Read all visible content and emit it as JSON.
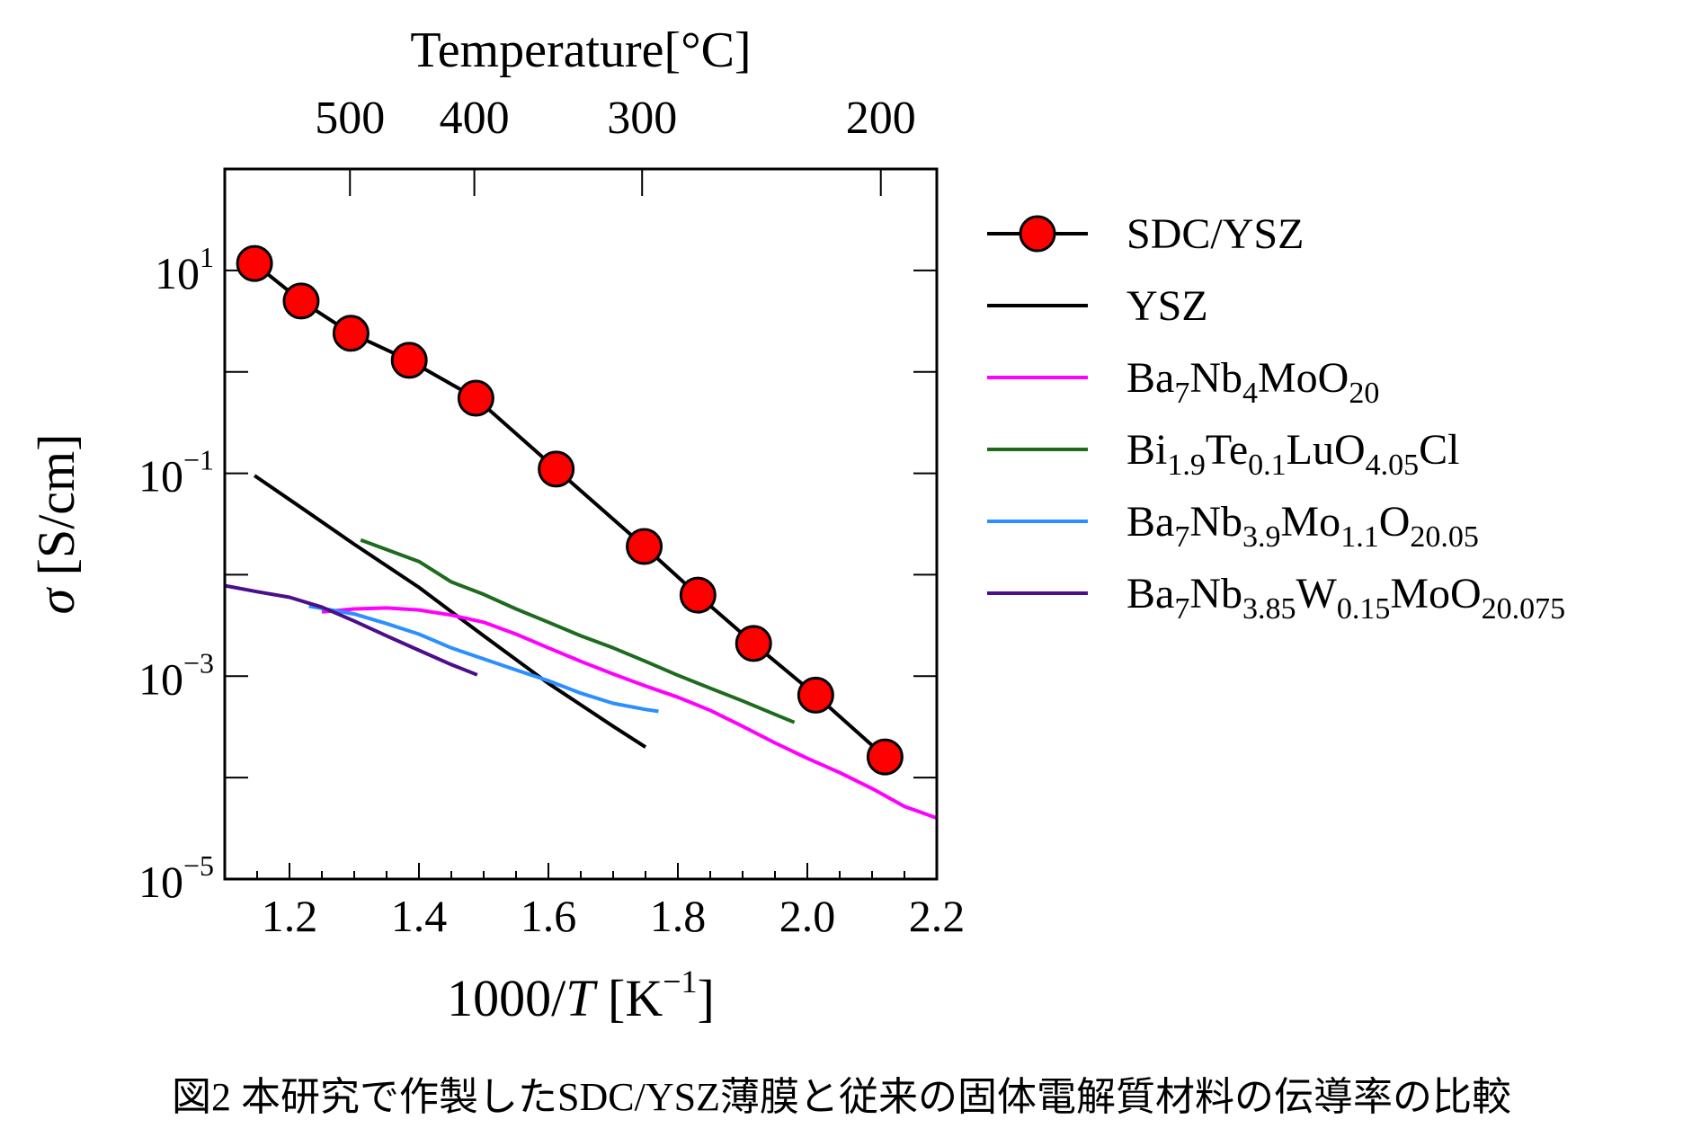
{
  "chart_data": {
    "type": "line",
    "title": "",
    "xlabel": "1000/T [K⁻¹]",
    "xlabel_parts": {
      "pre": "1000/",
      "italic": "T",
      "post": " [K",
      "sup": "−1",
      "end": "]"
    },
    "ylabel": "σ [S/cm]",
    "ylabel_parts": {
      "italic": "σ",
      "rest": " [S/cm]"
    },
    "top_xlabel": "Temperature[°C]",
    "xlim": [
      1.1,
      2.2
    ],
    "ylim_log10": [
      -5,
      2
    ],
    "x_ticks": [
      {
        "value": 1.2,
        "label": "1.2"
      },
      {
        "value": 1.4,
        "label": "1.4"
      },
      {
        "value": 1.6,
        "label": "1.6"
      },
      {
        "value": 1.8,
        "label": "1.8"
      },
      {
        "value": 2.0,
        "label": "2.0"
      },
      {
        "value": 2.2,
        "label": "2.2"
      }
    ],
    "y_ticks": [
      {
        "exp": 1,
        "base": "10",
        "sup": "1"
      },
      {
        "exp": -1,
        "base": "10",
        "sup": "−1"
      },
      {
        "exp": -3,
        "base": "10",
        "sup": "−3"
      },
      {
        "exp": -5,
        "base": "10",
        "sup": "−5"
      }
    ],
    "top_ticks": [
      {
        "celsius": 500,
        "label": "500"
      },
      {
        "celsius": 400,
        "label": "400"
      },
      {
        "celsius": 300,
        "label": "300"
      },
      {
        "celsius": 200,
        "label": "200"
      }
    ],
    "series": [
      {
        "name": "SDC/YSZ",
        "color": "#000000",
        "marker": "circle",
        "marker_fill": "#ff0000",
        "legend": [
          {
            "t": "SDC/YSZ",
            "s": ""
          }
        ],
        "x": [
          1.146,
          1.218,
          1.295,
          1.385,
          1.488,
          1.612,
          1.748,
          1.831,
          1.917,
          2.013,
          2.12
        ],
        "y": [
          11.7,
          5.0,
          2.4,
          1.3,
          0.55,
          0.11,
          0.019,
          0.0063,
          0.0021,
          0.00065,
          0.00016
        ]
      },
      {
        "name": "YSZ",
        "color": "#000000",
        "marker": "none",
        "legend": [
          {
            "t": "YSZ",
            "s": ""
          }
        ],
        "x": [
          1.146,
          1.22,
          1.3,
          1.4,
          1.5,
          1.6,
          1.7,
          1.75
        ],
        "y": [
          0.095,
          0.045,
          0.02,
          0.0075,
          0.0025,
          0.00085,
          0.00032,
          0.0002
        ]
      },
      {
        "name": "Ba7Nb4MoO20",
        "color": "#ff00ff",
        "marker": "none",
        "legend": [
          {
            "t": "Ba",
            "s": ""
          },
          {
            "t": "7",
            "s": "sub"
          },
          {
            "t": "Nb",
            "s": ""
          },
          {
            "t": "4",
            "s": "sub"
          },
          {
            "t": "MoO",
            "s": ""
          },
          {
            "t": "20",
            "s": "sub"
          }
        ],
        "x": [
          1.25,
          1.3,
          1.35,
          1.4,
          1.45,
          1.5,
          1.55,
          1.6,
          1.65,
          1.7,
          1.75,
          1.8,
          1.85,
          1.9,
          1.95,
          2.0,
          2.05,
          2.1,
          2.15,
          2.2
        ],
        "y": [
          0.0043,
          0.0046,
          0.0047,
          0.0045,
          0.004,
          0.0034,
          0.0026,
          0.0019,
          0.0014,
          0.00105,
          0.0008,
          0.00062,
          0.00046,
          0.00032,
          0.00022,
          0.000155,
          0.000112,
          7.8e-05,
          5.2e-05,
          4e-05
        ]
      },
      {
        "name": "Bi1.9Te0.1LuO4.05Cl",
        "color": "#1e6b1e",
        "marker": "none",
        "legend": [
          {
            "t": "Bi",
            "s": ""
          },
          {
            "t": "1.9",
            "s": "sub"
          },
          {
            "t": "Te",
            "s": ""
          },
          {
            "t": "0.1",
            "s": "sub"
          },
          {
            "t": "LuO",
            "s": ""
          },
          {
            "t": "4.05",
            "s": "sub"
          },
          {
            "t": "Cl",
            "s": ""
          }
        ],
        "x": [
          1.31,
          1.4,
          1.45,
          1.5,
          1.55,
          1.6,
          1.65,
          1.7,
          1.75,
          1.8,
          1.85,
          1.9,
          1.95,
          1.98
        ],
        "y": [
          0.022,
          0.0135,
          0.0085,
          0.0064,
          0.0046,
          0.0034,
          0.0025,
          0.0019,
          0.0014,
          0.00102,
          0.00076,
          0.00057,
          0.00042,
          0.00035
        ]
      },
      {
        "name": "Ba7Nb3.9Mo1.1O20.05",
        "color": "#2b8fff",
        "marker": "none",
        "legend": [
          {
            "t": "Ba",
            "s": ""
          },
          {
            "t": "7",
            "s": "sub"
          },
          {
            "t": "Nb",
            "s": ""
          },
          {
            "t": "3.9",
            "s": "sub"
          },
          {
            "t": "Mo",
            "s": ""
          },
          {
            "t": "1.1",
            "s": "sub"
          },
          {
            "t": "O",
            "s": ""
          },
          {
            "t": "20.05",
            "s": "sub"
          }
        ],
        "x": [
          1.23,
          1.3,
          1.35,
          1.4,
          1.45,
          1.5,
          1.55,
          1.6,
          1.65,
          1.7,
          1.75,
          1.77
        ],
        "y": [
          0.0049,
          0.0041,
          0.0033,
          0.0026,
          0.0019,
          0.00148,
          0.00115,
          0.0009,
          0.00068,
          0.00054,
          0.00047,
          0.00045
        ]
      },
      {
        "name": "Ba7Nb3.85W0.15MoO20.075",
        "color": "#4b0f8c",
        "marker": "none",
        "legend": [
          {
            "t": "Ba",
            "s": ""
          },
          {
            "t": "7",
            "s": "sub"
          },
          {
            "t": "Nb",
            "s": ""
          },
          {
            "t": "3.85",
            "s": "sub"
          },
          {
            "t": "W",
            "s": ""
          },
          {
            "t": "0.15",
            "s": "sub"
          },
          {
            "t": "MoO",
            "s": ""
          },
          {
            "t": "20.075",
            "s": "sub"
          }
        ],
        "x": [
          1.1,
          1.15,
          1.2,
          1.25,
          1.3,
          1.35,
          1.4,
          1.45,
          1.49
        ],
        "y": [
          0.0078,
          0.0068,
          0.006,
          0.0048,
          0.0035,
          0.0025,
          0.0018,
          0.0013,
          0.00103
        ]
      }
    ]
  },
  "caption": "図2 本研究で作製したSDC/YSZ薄膜と従来の固体電解質材料の伝導率の比較"
}
